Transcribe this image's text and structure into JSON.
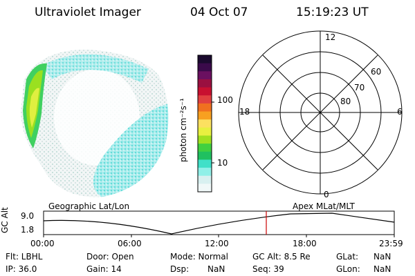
{
  "header": {
    "title": "Ultraviolet Imager",
    "date": "04 Oct 07",
    "time": "15:19:23 UT"
  },
  "colorbar": {
    "label": "photon cm⁻²s⁻¹",
    "ticks": [
      "100",
      "10"
    ],
    "colors": [
      "#1a0a2e",
      "#3a0a4a",
      "#6a1060",
      "#9a1040",
      "#c81030",
      "#e04040",
      "#f07020",
      "#f8a020",
      "#fce060",
      "#e8f040",
      "#a0e020",
      "#40d040",
      "#20c060",
      "#40e0c8",
      "#90f0e8",
      "#d8f0f0",
      "#f0f8f8"
    ]
  },
  "polar_plot": {
    "mlt_labels": [
      "12",
      "18",
      "6",
      "0"
    ],
    "lat_labels": [
      "60",
      "70",
      "80"
    ]
  },
  "timeline": {
    "left_title": "Geographic Lat/Lon",
    "right_title": "Apex  MLat/MLT",
    "axis_label": "GC Alt",
    "y_ticks": [
      "9.0",
      "1.8"
    ],
    "x_ticks": [
      "00:00",
      "06:00",
      "12:00",
      "18:00",
      "23:59"
    ],
    "marker_color": "#cc0000"
  },
  "info": {
    "flt": "Flt: LBHL",
    "door": "Door: Open",
    "mode": "Mode: Normal",
    "gcalt": "GC Alt: 8.5 Re",
    "glat": "GLat:",
    "glat_val": "NaN",
    "ip": "IP: 36.0",
    "gain": "Gain: 14",
    "dsp": "Dsp:",
    "dsp_val": "NaN",
    "seq": "Seq: 39",
    "glon": "GLon:",
    "glon_val": "NaN"
  }
}
